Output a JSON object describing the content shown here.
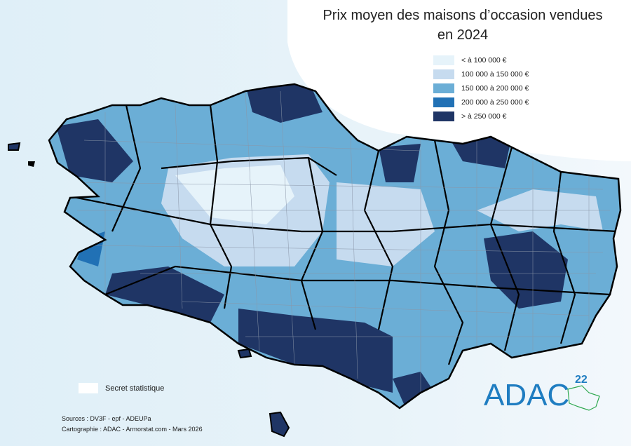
{
  "title_line1": "Prix moyen des maisons d’occasion vendues",
  "title_line2": "en 2024",
  "legend": [
    {
      "label": "< à 100 000 €",
      "color": "#e6f3fa"
    },
    {
      "label": "100 000 à 150 000 €",
      "color": "#c6dbef"
    },
    {
      "label": "150 000 à 200 000 €",
      "color": "#6baed6"
    },
    {
      "label": "200 000 à 250 000 €",
      "color": "#2171b5"
    },
    {
      "label": "> à 250 000 €",
      "color": "#1f3565"
    }
  ],
  "secret_label": "Secret statistique",
  "sources": "Sources : DV3F - epf - ADEUPa",
  "credits": "Cartographie : ADAC - Armorstat.com - Mars 2026",
  "logo": {
    "text": "ADAC",
    "superscript": "22",
    "color": "#1f7dc1",
    "accent": "#2ea84f"
  }
}
